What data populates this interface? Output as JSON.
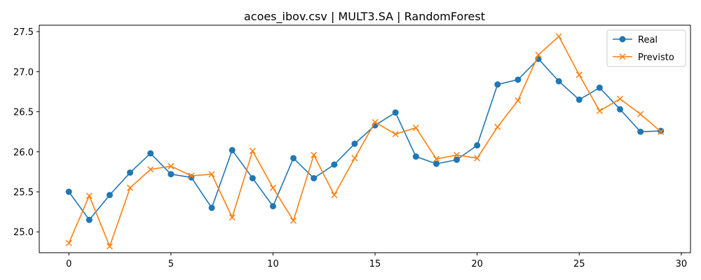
{
  "chart_data": {
    "type": "line",
    "title": "acoes_ibov.csv | MULT3.SA | RandomForest",
    "xlabel": "",
    "ylabel": "",
    "xlim": [
      -1.45,
      30.45
    ],
    "ylim": [
      24.74,
      27.58
    ],
    "x_ticks": [
      0,
      5,
      10,
      15,
      20,
      25,
      30
    ],
    "x_tick_labels": [
      "0",
      "5",
      "10",
      "15",
      "20",
      "25",
      "30"
    ],
    "y_ticks": [
      25.0,
      25.5,
      26.0,
      26.5,
      27.0,
      27.5
    ],
    "y_tick_labels": [
      "25.0",
      "25.5",
      "26.0",
      "26.5",
      "27.0",
      "27.5"
    ],
    "grid": false,
    "legend_position": "top-right",
    "x": [
      0,
      1,
      2,
      3,
      4,
      5,
      6,
      7,
      8,
      9,
      10,
      11,
      12,
      13,
      14,
      15,
      16,
      17,
      18,
      19,
      20,
      21,
      22,
      23,
      24,
      25,
      26,
      27,
      28,
      29
    ],
    "series": [
      {
        "name": "Real",
        "color": "#1f77b4",
        "marker": "circle",
        "values": [
          25.5,
          25.15,
          25.46,
          25.74,
          25.98,
          25.72,
          25.68,
          25.3,
          26.02,
          25.67,
          25.32,
          25.92,
          25.67,
          25.84,
          26.1,
          26.33,
          26.49,
          25.94,
          25.85,
          25.9,
          26.08,
          26.84,
          26.9,
          27.16,
          26.88,
          26.65,
          26.8,
          26.53,
          26.25,
          26.26
        ]
      },
      {
        "name": "Previsto",
        "color": "#ff7f0e",
        "marker": "x",
        "values": [
          24.86,
          25.45,
          24.82,
          25.55,
          25.78,
          25.82,
          25.7,
          25.72,
          25.18,
          26.01,
          25.55,
          25.14,
          25.96,
          25.46,
          25.92,
          26.37,
          26.22,
          26.3,
          25.91,
          25.96,
          25.92,
          26.31,
          26.64,
          27.21,
          27.44,
          26.96,
          26.51,
          26.66,
          26.47,
          26.25
        ]
      }
    ]
  }
}
